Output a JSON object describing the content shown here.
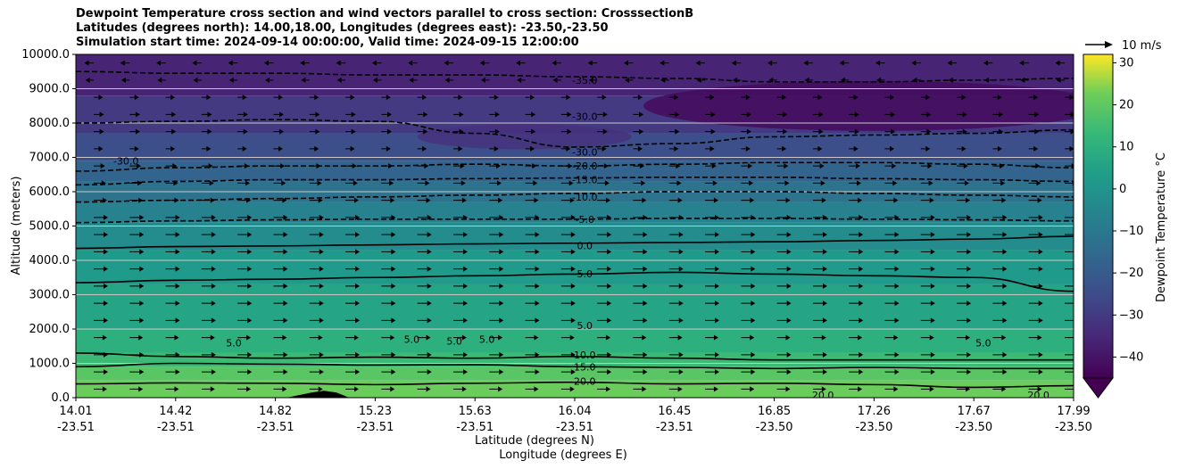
{
  "title_lines": [
    "Dewpoint Temperature cross section and wind vectors parallel to cross section: CrosssectionB",
    "Latitudes (degrees north): 14.00,18.00, Longitudes (degrees east): -23.50,-23.50",
    "Simulation start time: 2024-09-14 00:00:00, Valid time: 2024-09-15 12:00:00"
  ],
  "chart_data": {
    "type": "heatmap",
    "xlabel_lat": "Latitude (degrees N)",
    "xlabel_lon": "Longitude (degrees E)",
    "ylabel": "Altitude (meters)",
    "ylim": [
      0,
      10000
    ],
    "xlim": [
      14.01,
      17.99
    ],
    "y_ticks": [
      "0.0",
      "1000.0",
      "2000.0",
      "3000.0",
      "4000.0",
      "5000.0",
      "6000.0",
      "7000.0",
      "8000.0",
      "9000.0",
      "10000.0"
    ],
    "x_ticks": [
      {
        "lat": "14.01",
        "lon": "-23.51"
      },
      {
        "lat": "14.42",
        "lon": "-23.51"
      },
      {
        "lat": "14.82",
        "lon": "-23.51"
      },
      {
        "lat": "15.23",
        "lon": "-23.51"
      },
      {
        "lat": "15.63",
        "lon": "-23.51"
      },
      {
        "lat": "16.04",
        "lon": "-23.51"
      },
      {
        "lat": "16.45",
        "lon": "-23.51"
      },
      {
        "lat": "16.85",
        "lon": "-23.50"
      },
      {
        "lat": "17.26",
        "lon": "-23.50"
      },
      {
        "lat": "17.67",
        "lon": "-23.50"
      },
      {
        "lat": "17.99",
        "lon": "-23.50"
      }
    ],
    "horizontal_gridlines": true,
    "colorbar": {
      "label": "Dewpoint Temperature $^\\circ$C",
      "label_display": "Dewpoint Temperature °C",
      "colormap": "viridis",
      "range": [
        -45,
        32
      ],
      "ticks": [
        "30",
        "20",
        "10",
        "0",
        "−10",
        "−20",
        "−30",
        "−40"
      ],
      "tick_values": [
        30,
        20,
        10,
        0,
        -10,
        -20,
        -30,
        -40
      ],
      "extend": "min"
    },
    "wind_key": {
      "label": "10 m/s",
      "value": 10
    },
    "contour_bands": [
      {
        "altitude_from": 0,
        "altitude_to": 500,
        "dewpoint": 22
      },
      {
        "altitude_from": 500,
        "altitude_to": 900,
        "dewpoint": 19
      },
      {
        "altitude_from": 900,
        "altitude_to": 1300,
        "dewpoint": 14
      },
      {
        "altitude_from": 1300,
        "altitude_to": 2000,
        "dewpoint": 10
      },
      {
        "altitude_from": 2000,
        "altitude_to": 3300,
        "dewpoint": 6
      },
      {
        "altitude_from": 3300,
        "altitude_to": 4300,
        "dewpoint": 2
      },
      {
        "altitude_from": 4300,
        "altitude_to": 5100,
        "dewpoint": -3
      },
      {
        "altitude_from": 5100,
        "altitude_to": 5700,
        "dewpoint": -7
      },
      {
        "altitude_from": 5700,
        "altitude_to": 6300,
        "dewpoint": -12
      },
      {
        "altitude_from": 6300,
        "altitude_to": 6900,
        "dewpoint": -17
      },
      {
        "altitude_from": 6900,
        "altitude_to": 7700,
        "dewpoint": -24
      },
      {
        "altitude_from": 7700,
        "altitude_to": 8800,
        "dewpoint": -30
      },
      {
        "altitude_from": 8800,
        "altitude_to": 10000,
        "dewpoint": -36
      }
    ],
    "contours": [
      {
        "value": 20.0,
        "label": "20.0",
        "style": "solid",
        "altitudes": [
          400,
          430,
          420,
          380,
          420,
          450,
          400,
          420,
          380,
          300,
          350
        ]
      },
      {
        "value": 15.0,
        "label": "15.0",
        "style": "solid",
        "altitudes": [
          900,
          1000,
          980,
          950,
          960,
          900,
          880,
          850,
          880,
          850,
          850
        ]
      },
      {
        "value": 10.0,
        "label": "10.0",
        "style": "solid",
        "altitudes": [
          1300,
          1200,
          1150,
          1180,
          1150,
          1200,
          1150,
          1100,
          1100,
          1100,
          1100
        ]
      },
      {
        "value": 5.0,
        "label": "5.0",
        "style": "solid",
        "altitudes": [
          3350,
          3420,
          3450,
          3500,
          3550,
          3600,
          3650,
          3600,
          3550,
          3500,
          3100
        ]
      },
      {
        "value": 0.0,
        "label": "0.0",
        "style": "solid",
        "altitudes": [
          4350,
          4400,
          4420,
          4450,
          4480,
          4500,
          4520,
          4540,
          4580,
          4620,
          4700
        ]
      },
      {
        "value": -5.0,
        "label": "-5.0",
        "style": "dashed",
        "altitudes": [
          5100,
          5150,
          5180,
          5200,
          5200,
          5200,
          5220,
          5220,
          5200,
          5180,
          5150
        ]
      },
      {
        "value": -10.0,
        "label": "-10.0",
        "style": "dashed",
        "altitudes": [
          5700,
          5750,
          5800,
          5850,
          5900,
          5950,
          6000,
          6000,
          5950,
          5900,
          5850
        ]
      },
      {
        "value": -15.0,
        "label": "-15.0",
        "style": "dashed",
        "altitudes": [
          6200,
          6300,
          6350,
          6350,
          6380,
          6400,
          6420,
          6420,
          6380,
          6350,
          6300
        ]
      },
      {
        "value": -20.0,
        "label": "-20.0",
        "style": "dashed",
        "altitudes": [
          6600,
          6700,
          6750,
          6750,
          6800,
          6750,
          6800,
          6850,
          6850,
          6800,
          6700
        ]
      },
      {
        "value": -30.0,
        "label": "-30.0",
        "style": "dashed",
        "altitudes": [
          8000,
          8050,
          8100,
          8050,
          7700,
          7300,
          7400,
          7600,
          7650,
          7700,
          7800
        ]
      },
      {
        "value": -35.0,
        "label": "-35.0",
        "style": "dashed",
        "altitudes": [
          9500,
          9450,
          9450,
          9400,
          9400,
          9350,
          9300,
          9200,
          9200,
          9250,
          9300
        ]
      }
    ],
    "contour_labels": [
      {
        "label": "-35.0",
        "lat": 16.04,
        "altitude": 9250
      },
      {
        "label": "-30.0",
        "lat": 16.04,
        "altitude": 8200
      },
      {
        "label": "-30.0",
        "lat": 16.04,
        "altitude": 7150
      },
      {
        "label": "-20.0",
        "lat": 16.04,
        "altitude": 6750
      },
      {
        "label": "-15.0",
        "lat": 16.04,
        "altitude": 6350
      },
      {
        "label": "-10.0",
        "lat": 16.04,
        "altitude": 5850
      },
      {
        "label": "-5.0",
        "lat": 16.04,
        "altitude": 5200
      },
      {
        "label": "0.0",
        "lat": 16.04,
        "altitude": 4430
      },
      {
        "label": "5.0",
        "lat": 16.04,
        "altitude": 3610
      },
      {
        "label": "5.0",
        "lat": 16.04,
        "altitude": 2100
      },
      {
        "label": "10.0",
        "lat": 16.04,
        "altitude": 1250
      },
      {
        "label": "15.0",
        "lat": 16.04,
        "altitude": 900
      },
      {
        "label": "20.0",
        "lat": 16.04,
        "altitude": 480
      },
      {
        "label": "5.0",
        "lat": 14.64,
        "altitude": 1600
      },
      {
        "label": "5.0",
        "lat": 15.35,
        "altitude": 1700
      },
      {
        "label": "5.0",
        "lat": 15.52,
        "altitude": 1650
      },
      {
        "label": "5.0",
        "lat": 15.65,
        "altitude": 1700
      },
      {
        "label": "5.0",
        "lat": 17.63,
        "altitude": 1600
      },
      {
        "label": "-30.0",
        "lat": 14.21,
        "altitude": 6900
      },
      {
        "label": "20.0",
        "lat": 16.99,
        "altitude": 80
      },
      {
        "label": "20.0",
        "lat": 17.85,
        "altitude": 80
      }
    ],
    "wind_vectors_altitude_rows": [
      250,
      750,
      1250,
      1750,
      2250,
      2750,
      3250,
      3750,
      4250,
      4750,
      5250,
      5750,
      6250,
      6750,
      7250,
      7750,
      8250,
      8750,
      9250,
      9750
    ],
    "wind_vector_u_by_row": [
      4.5,
      5.0,
      5.0,
      4.5,
      5.0,
      5.0,
      5.0,
      5.0,
      5.0,
      5.0,
      5.0,
      4.5,
      4.0,
      3.5,
      2.5,
      3.0,
      3.0,
      2.5,
      -2.0,
      -2.5
    ],
    "terrain": [
      {
        "lat": 14.85,
        "altitude": 0
      },
      {
        "lat": 14.95,
        "altitude": 150
      },
      {
        "lat": 15.0,
        "altitude": 200
      },
      {
        "lat": 15.05,
        "altitude": 150
      },
      {
        "lat": 15.1,
        "altitude": 0
      }
    ]
  }
}
